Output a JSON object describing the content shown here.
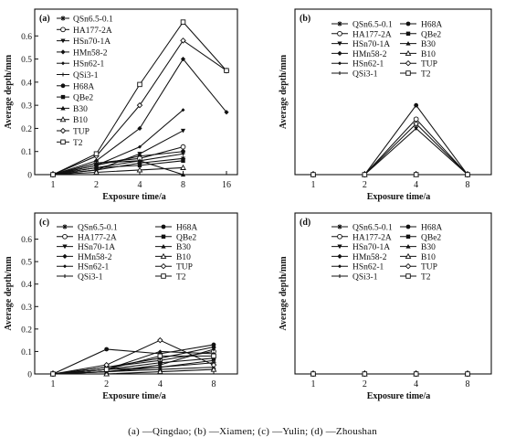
{
  "caption": "(a) —Qingdao; (b) —Xiamen; (c) —Yulin; (d) —Zhoushan",
  "legend": {
    "entries": [
      {
        "name": "QSn6.5-0.1",
        "marker": "star"
      },
      {
        "name": "H68A",
        "marker": "filled-circle"
      },
      {
        "name": "HA177-2A",
        "marker": "open-circle"
      },
      {
        "name": "QBe2",
        "marker": "filled-square"
      },
      {
        "name": "HSn70-1A",
        "marker": "filled-triangle-down"
      },
      {
        "name": "B30",
        "marker": "filled-triangle-up"
      },
      {
        "name": "HMn58-2",
        "marker": "filled-diamond"
      },
      {
        "name": "B10",
        "marker": "open-triangle-up"
      },
      {
        "name": "HSn62-1",
        "marker": "filled-diamond-small"
      },
      {
        "name": "TUP",
        "marker": "open-diamond"
      },
      {
        "name": "QSi3-1",
        "marker": "small-star"
      },
      {
        "name": "T2",
        "marker": "open-square"
      }
    ]
  },
  "chart_data": [
    {
      "panel_label": "(a)",
      "type": "line",
      "xlabel": "Exposure time/a",
      "ylabel": "Average depth/mm",
      "categories": [
        "1",
        "2",
        "4",
        "8",
        "16"
      ],
      "yticks": [
        "0",
        "0.1",
        "0.2",
        "0.3",
        "0.4",
        "0.5",
        "0.6"
      ],
      "ylim": [
        0,
        0.7
      ],
      "series": [
        {
          "name": "QSn6.5-0.1",
          "values": [
            0,
            0.02,
            0.05,
            0.07,
            null
          ]
        },
        {
          "name": "H68A",
          "values": [
            0,
            0.04,
            0.08,
            0.1,
            null
          ]
        },
        {
          "name": "HA177-2A",
          "values": [
            0,
            0.05,
            0.07,
            0.12,
            null
          ]
        },
        {
          "name": "QBe2",
          "values": [
            0,
            0.03,
            0.04,
            0.06,
            null
          ]
        },
        {
          "name": "HSn70-1A",
          "values": [
            0,
            0.02,
            0.09,
            0.19,
            null
          ]
        },
        {
          "name": "B30",
          "values": [
            0,
            0.05,
            0.06,
            0.0,
            null
          ]
        },
        {
          "name": "HMn58-2",
          "values": [
            0,
            0.06,
            0.2,
            0.5,
            0.27
          ]
        },
        {
          "name": "B10",
          "values": [
            0,
            0.01,
            0.02,
            0.03,
            null
          ]
        },
        {
          "name": "HSn62-1",
          "values": [
            0,
            0.04,
            0.12,
            0.28,
            null
          ]
        },
        {
          "name": "TUP",
          "values": [
            0,
            0.08,
            0.3,
            0.58,
            0.45
          ]
        },
        {
          "name": "QSi3-1",
          "values": [
            0,
            0.03,
            0.06,
            0.09,
            null
          ]
        },
        {
          "name": "T2",
          "values": [
            0,
            0.09,
            0.39,
            0.66,
            0.45
          ]
        }
      ]
    },
    {
      "panel_label": "(b)",
      "type": "line",
      "xlabel": "Exposure time/a",
      "ylabel": "Average depth/mm",
      "categories": [
        "1",
        "2",
        "4",
        "8"
      ],
      "yticks": [],
      "ylim": [
        0,
        0.7
      ],
      "series": [
        {
          "name": "QSn6.5-0.1",
          "values": [
            0,
            0,
            0,
            0
          ]
        },
        {
          "name": "H68A",
          "values": [
            0,
            0,
            0.3,
            0
          ]
        },
        {
          "name": "HA177-2A",
          "values": [
            0,
            0,
            0.24,
            0
          ]
        },
        {
          "name": "QBe2",
          "values": [
            0,
            0,
            0,
            0
          ]
        },
        {
          "name": "HSn70-1A",
          "values": [
            0,
            0,
            0.2,
            0
          ]
        },
        {
          "name": "B30",
          "values": [
            0,
            0,
            0,
            0
          ]
        },
        {
          "name": "HMn58-2",
          "values": [
            0,
            0,
            0,
            0
          ]
        },
        {
          "name": "B10",
          "values": [
            0,
            0,
            0,
            0
          ]
        },
        {
          "name": "HSn62-1",
          "values": [
            0,
            0,
            0,
            0
          ]
        },
        {
          "name": "TUP",
          "values": [
            0,
            0,
            0.22,
            0
          ]
        },
        {
          "name": "QSi3-1",
          "values": [
            0,
            0,
            0,
            0
          ]
        },
        {
          "name": "T2",
          "values": [
            0,
            0,
            0,
            0
          ]
        }
      ]
    },
    {
      "panel_label": "(c)",
      "type": "line",
      "xlabel": "Exposure time/a",
      "ylabel": "Average depth/mm",
      "categories": [
        "1",
        "2",
        "4",
        "8"
      ],
      "yticks": [
        "0",
        "0.1",
        "0.2",
        "0.3",
        "0.4",
        "0.5",
        "0.6"
      ],
      "ylim": [
        0,
        0.7
      ],
      "series": [
        {
          "name": "QSn6.5-0.1",
          "values": [
            0,
            0.02,
            0.03,
            0.05
          ]
        },
        {
          "name": "H68A",
          "values": [
            0,
            0.11,
            0.09,
            0.13
          ]
        },
        {
          "name": "HA177-2A",
          "values": [
            0,
            0.03,
            0.06,
            0.1
          ]
        },
        {
          "name": "QBe2",
          "values": [
            0,
            0.02,
            0.05,
            0.07
          ]
        },
        {
          "name": "HSn70-1A",
          "values": [
            0,
            0.01,
            0.04,
            0.11
          ]
        },
        {
          "name": "B30",
          "values": [
            0,
            0.01,
            0.02,
            0.03
          ]
        },
        {
          "name": "HMn58-2",
          "values": [
            0,
            0.03,
            0.07,
            0.12
          ]
        },
        {
          "name": "B10",
          "values": [
            0,
            0.0,
            0.01,
            0.02
          ]
        },
        {
          "name": "HSn62-1",
          "values": [
            0,
            0.02,
            0.1,
            0.09
          ]
        },
        {
          "name": "TUP",
          "values": [
            0,
            0.04,
            0.15,
            0.04
          ]
        },
        {
          "name": "QSi3-1",
          "values": [
            0,
            0.01,
            0.03,
            0.06
          ]
        },
        {
          "name": "T2",
          "values": [
            0,
            0.02,
            0.08,
            0.08
          ]
        }
      ]
    },
    {
      "panel_label": "(d)",
      "type": "line",
      "xlabel": "Exposure time/a",
      "ylabel": "Average depth/mm",
      "categories": [
        "1",
        "2",
        "4",
        "8"
      ],
      "yticks": [],
      "ylim": [
        0,
        0.7
      ],
      "series": [
        {
          "name": "QSn6.5-0.1",
          "values": [
            0,
            0,
            0,
            0
          ]
        },
        {
          "name": "H68A",
          "values": [
            0,
            0,
            0,
            0
          ]
        },
        {
          "name": "HA177-2A",
          "values": [
            0,
            0,
            0,
            0
          ]
        },
        {
          "name": "QBe2",
          "values": [
            0,
            0,
            0,
            0
          ]
        },
        {
          "name": "HSn70-1A",
          "values": [
            0,
            0,
            0,
            0
          ]
        },
        {
          "name": "B30",
          "values": [
            0,
            0,
            0,
            0
          ]
        },
        {
          "name": "HMn58-2",
          "values": [
            0,
            0,
            0,
            0
          ]
        },
        {
          "name": "B10",
          "values": [
            0,
            0,
            0,
            0
          ]
        },
        {
          "name": "HSn62-1",
          "values": [
            0,
            0,
            0,
            0
          ]
        },
        {
          "name": "TUP",
          "values": [
            0,
            0,
            0,
            0
          ]
        },
        {
          "name": "QSi3-1",
          "values": [
            0,
            0,
            0,
            0
          ]
        },
        {
          "name": "T2",
          "values": [
            0,
            0,
            0,
            0
          ]
        }
      ]
    }
  ]
}
